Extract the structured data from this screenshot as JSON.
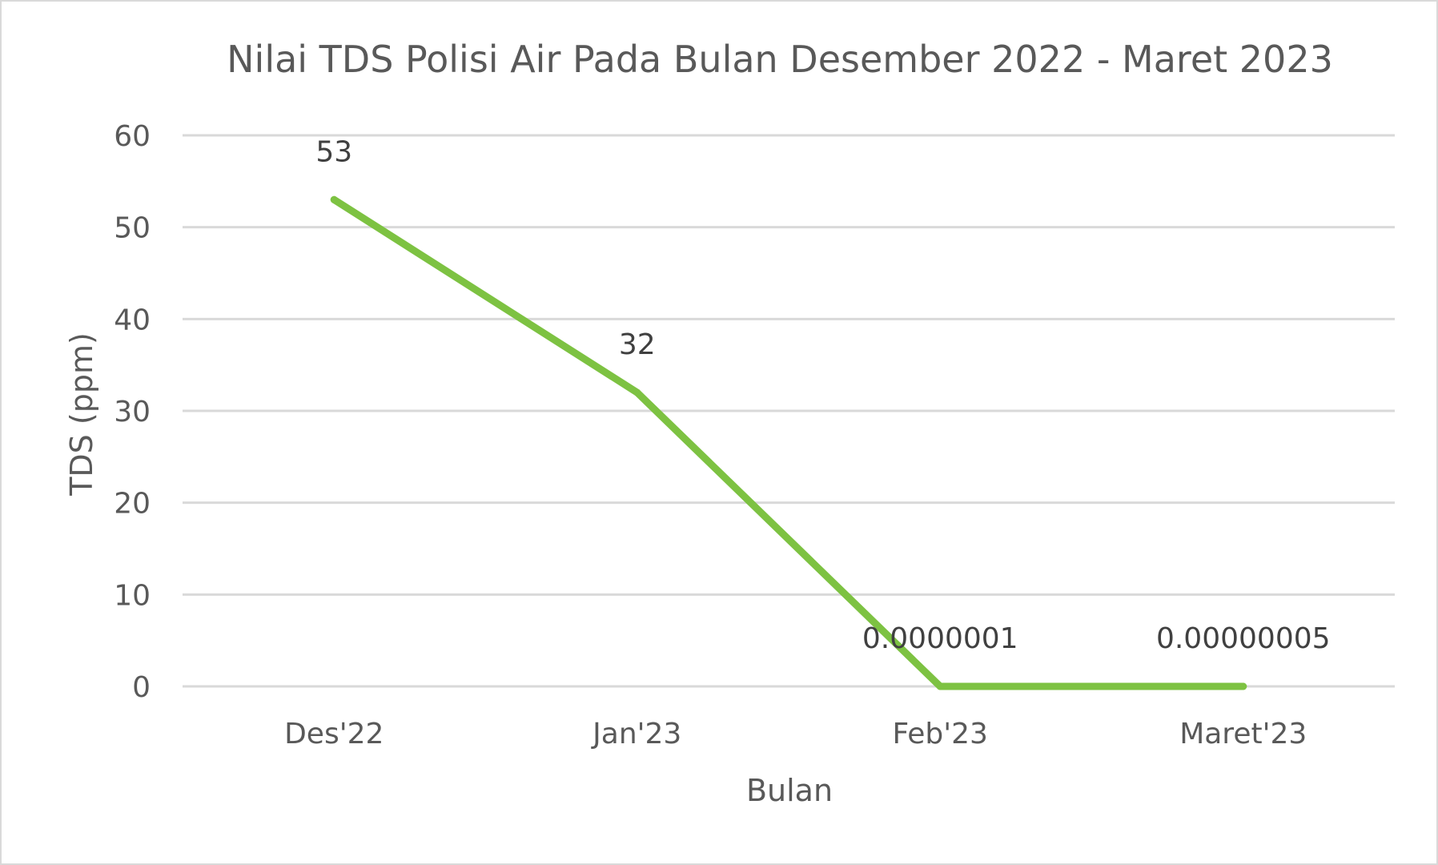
{
  "chart_data": {
    "type": "line",
    "title": "Nilai TDS Polisi Air Pada Bulan Desember 2022 - Maret 2023",
    "xlabel": "Bulan",
    "ylabel": "TDS (ppm)",
    "categories": [
      "Des'22",
      "Jan'23",
      "Feb'23",
      "Maret'23"
    ],
    "values": [
      53,
      32,
      1e-07,
      5e-08
    ],
    "data_labels": [
      "53",
      "32",
      "0.0000001",
      "0.00000005"
    ],
    "ylim": [
      0,
      60
    ],
    "yticks": [
      0,
      10,
      20,
      30,
      40,
      50,
      60
    ],
    "grid": true,
    "legend": "none",
    "colors": {
      "line": "#7dc242",
      "grid": "#d9d9d9",
      "text": "#595959",
      "border": "#d9d9d9"
    }
  }
}
